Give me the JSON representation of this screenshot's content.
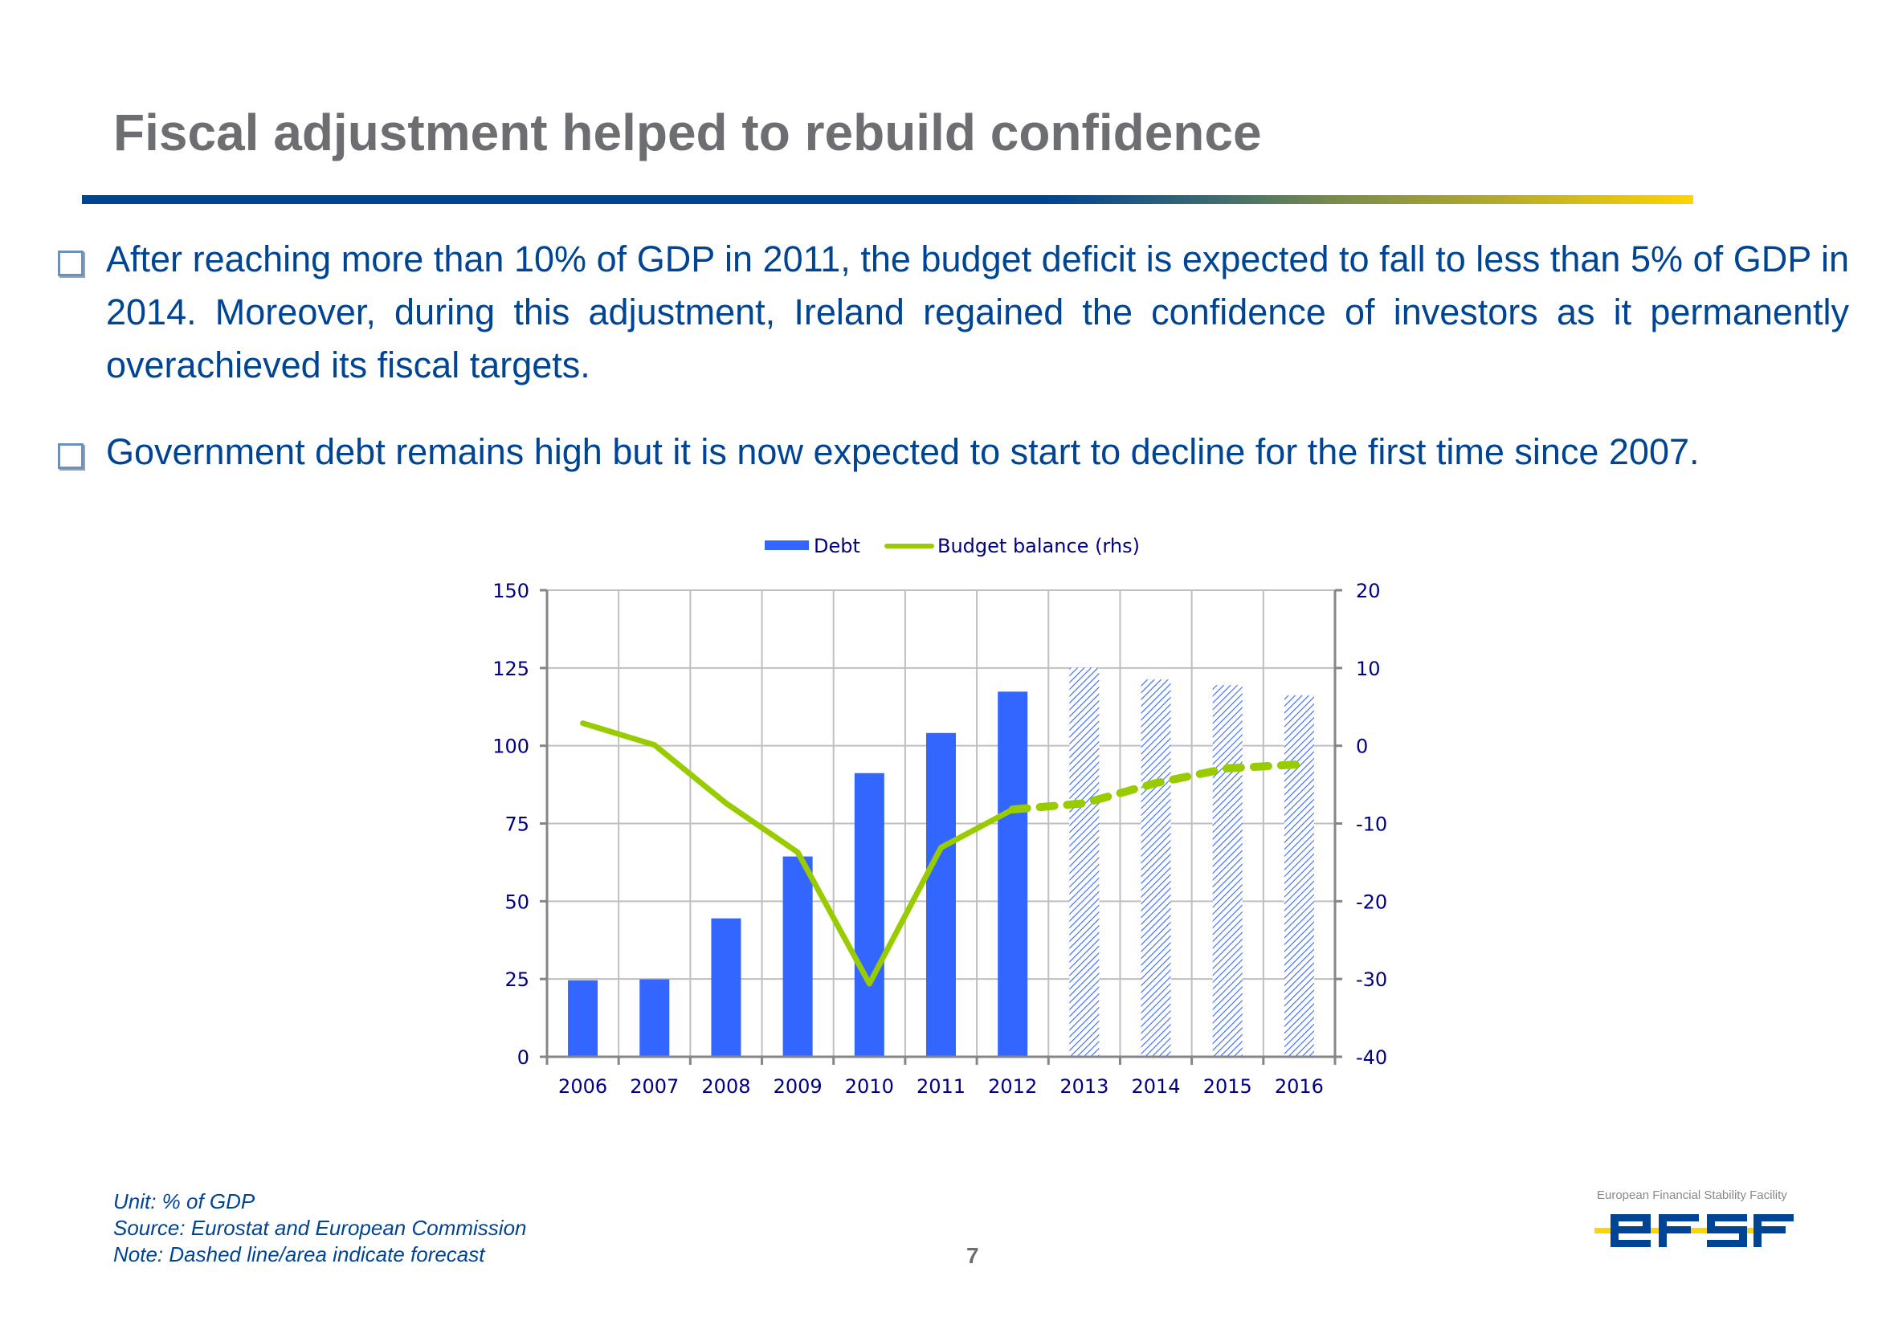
{
  "slide": {
    "title": "Fiscal adjustment helped to rebuild confidence",
    "bullets": [
      "After reaching more than 10% of GDP in 2011, the budget deficit is expected to fall to less than 5% of GDP in 2014. Moreover, during this adjustment, Ireland regained the confidence of investors as it permanently overachieved its fiscal targets.",
      "Government debt remains high but it is now expected  to start to decline for the first time since 2007."
    ],
    "footer": {
      "unit": "Unit: % of GDP",
      "source": "Source: Eurostat and European Commission",
      "note": "Note: Dashed line/area indicate forecast"
    },
    "page_number": "7",
    "logo": {
      "caption": "European Financial Stability Facility",
      "wordmark": "efsf"
    },
    "colors": {
      "brand_blue": "#004494",
      "brand_yellow": "#ffd500",
      "title_gray": "#6d6e71",
      "bar_blue": "#3366ff",
      "line_green": "#99cc00",
      "axis_text": "#000080"
    }
  },
  "chart_data": {
    "type": "bar+line",
    "title": "",
    "categories": [
      "2006",
      "2007",
      "2008",
      "2009",
      "2010",
      "2011",
      "2012",
      "2013",
      "2014",
      "2015",
      "2016"
    ],
    "forecast_from": "2013",
    "series": [
      {
        "name": "Debt",
        "type": "bar",
        "axis": "left",
        "values": [
          24.6,
          24.9,
          44.5,
          64.4,
          91.2,
          104.1,
          117.4,
          125.1,
          121.3,
          119.5,
          116.2
        ]
      },
      {
        "name": "Budget balance (rhs)",
        "type": "line",
        "axis": "right",
        "values": [
          2.9,
          0.1,
          -7.4,
          -13.7,
          -30.6,
          -13.1,
          -8.2,
          -7.4,
          -4.8,
          -2.9,
          -2.4
        ]
      }
    ],
    "y_left": {
      "min": 0,
      "max": 150,
      "ticks": [
        0,
        25,
        50,
        75,
        100,
        125,
        150
      ]
    },
    "y_right": {
      "min": -40,
      "max": 20,
      "ticks": [
        -40,
        -30,
        -20,
        -10,
        0,
        10,
        20
      ]
    },
    "xlabel": "",
    "ylabel": "",
    "grid": true,
    "legend": {
      "position": "top-center",
      "entries": [
        "Debt",
        "Budget balance (rhs)"
      ]
    },
    "notes": "Dashed line/area indicate forecast"
  }
}
